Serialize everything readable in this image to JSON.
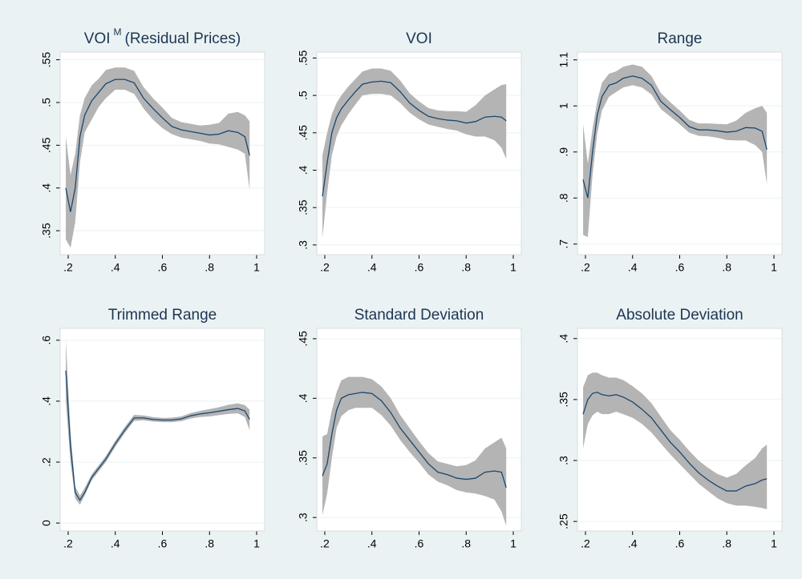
{
  "chart_data": [
    {
      "type": "line",
      "title": "VOI",
      "title_sup": "M",
      "title_suffix": "(Residual Prices)",
      "color": "#1a476f",
      "band_color": "#b4b4b4",
      "grid": true,
      "x": [
        0.19,
        0.21,
        0.23,
        0.25,
        0.27,
        0.3,
        0.33,
        0.36,
        0.4,
        0.44,
        0.48,
        0.52,
        0.56,
        0.6,
        0.64,
        0.68,
        0.72,
        0.76,
        0.8,
        0.84,
        0.88,
        0.92,
        0.95,
        0.97
      ],
      "values": [
        0.4,
        0.372,
        0.4,
        0.46,
        0.485,
        0.502,
        0.512,
        0.522,
        0.527,
        0.527,
        0.523,
        0.505,
        0.493,
        0.482,
        0.472,
        0.468,
        0.466,
        0.464,
        0.462,
        0.463,
        0.467,
        0.465,
        0.46,
        0.438
      ],
      "lower": [
        0.34,
        0.33,
        0.36,
        0.43,
        0.465,
        0.48,
        0.495,
        0.505,
        0.515,
        0.515,
        0.51,
        0.493,
        0.48,
        0.47,
        0.463,
        0.459,
        0.457,
        0.455,
        0.452,
        0.451,
        0.448,
        0.445,
        0.44,
        0.398
      ],
      "upper": [
        0.46,
        0.415,
        0.44,
        0.485,
        0.505,
        0.52,
        0.528,
        0.538,
        0.541,
        0.541,
        0.537,
        0.518,
        0.505,
        0.494,
        0.482,
        0.477,
        0.475,
        0.473,
        0.474,
        0.476,
        0.487,
        0.489,
        0.485,
        0.478
      ],
      "xlim": [
        0.166,
        1.034
      ],
      "xticks": [
        {
          "value": 0.2,
          "label": ".2"
        },
        {
          "value": 0.4,
          "label": ".4"
        },
        {
          "value": 0.6,
          "label": ".6"
        },
        {
          "value": 0.8,
          "label": ".8"
        },
        1
      ],
      "ylim": [
        0.322,
        0.559
      ],
      "yticks": [
        {
          "value": 0.35,
          "label": ".35"
        },
        {
          "value": 0.4,
          "label": ".4"
        },
        {
          "value": 0.45,
          "label": ".45"
        },
        {
          "value": 0.5,
          "label": ".5"
        },
        {
          "value": 0.55,
          "label": ".55"
        }
      ]
    },
    {
      "type": "line",
      "title": "VOI",
      "color": "#1a476f",
      "band_color": "#b4b4b4",
      "grid": true,
      "x": [
        0.19,
        0.21,
        0.23,
        0.25,
        0.27,
        0.3,
        0.33,
        0.36,
        0.4,
        0.44,
        0.48,
        0.52,
        0.56,
        0.6,
        0.64,
        0.68,
        0.72,
        0.76,
        0.8,
        0.84,
        0.88,
        0.92,
        0.95,
        0.97
      ],
      "values": [
        0.365,
        0.41,
        0.45,
        0.47,
        0.482,
        0.494,
        0.505,
        0.515,
        0.518,
        0.519,
        0.517,
        0.505,
        0.49,
        0.48,
        0.472,
        0.469,
        0.467,
        0.466,
        0.463,
        0.465,
        0.471,
        0.472,
        0.471,
        0.466
      ],
      "lower": [
        0.31,
        0.37,
        0.42,
        0.445,
        0.46,
        0.475,
        0.488,
        0.5,
        0.502,
        0.502,
        0.5,
        0.49,
        0.477,
        0.468,
        0.461,
        0.458,
        0.455,
        0.453,
        0.448,
        0.445,
        0.445,
        0.44,
        0.43,
        0.415
      ],
      "upper": [
        0.42,
        0.45,
        0.475,
        0.49,
        0.5,
        0.512,
        0.522,
        0.532,
        0.536,
        0.536,
        0.533,
        0.52,
        0.503,
        0.492,
        0.483,
        0.48,
        0.479,
        0.479,
        0.478,
        0.487,
        0.5,
        0.508,
        0.514,
        0.515
      ],
      "xlim": [
        0.166,
        1.034
      ],
      "xticks": [
        {
          "value": 0.2,
          "label": ".2"
        },
        {
          "value": 0.4,
          "label": ".4"
        },
        {
          "value": 0.6,
          "label": ".6"
        },
        {
          "value": 0.8,
          "label": ".8"
        },
        1
      ],
      "ylim": [
        0.287,
        0.558
      ],
      "yticks": [
        {
          "value": 0.3,
          "label": ".3"
        },
        {
          "value": 0.35,
          "label": ".35"
        },
        {
          "value": 0.4,
          "label": ".4"
        },
        {
          "value": 0.45,
          "label": ".45"
        },
        {
          "value": 0.5,
          "label": ".5"
        },
        {
          "value": 0.55,
          "label": ".55"
        }
      ]
    },
    {
      "type": "line",
      "title": "Range",
      "color": "#1a476f",
      "band_color": "#b4b4b4",
      "grid": true,
      "x": [
        0.19,
        0.21,
        0.23,
        0.25,
        0.27,
        0.3,
        0.33,
        0.36,
        0.4,
        0.44,
        0.48,
        0.52,
        0.56,
        0.6,
        0.64,
        0.68,
        0.72,
        0.76,
        0.8,
        0.84,
        0.88,
        0.92,
        0.95,
        0.97
      ],
      "values": [
        0.84,
        0.8,
        0.9,
        0.98,
        1.02,
        1.045,
        1.05,
        1.06,
        1.065,
        1.06,
        1.045,
        1.01,
        0.992,
        0.975,
        0.955,
        0.948,
        0.948,
        0.946,
        0.943,
        0.945,
        0.953,
        0.952,
        0.945,
        0.905
      ],
      "lower": [
        0.72,
        0.715,
        0.85,
        0.94,
        0.99,
        1.02,
        1.03,
        1.04,
        1.045,
        1.04,
        1.025,
        0.993,
        0.977,
        0.96,
        0.942,
        0.935,
        0.934,
        0.931,
        0.926,
        0.925,
        0.925,
        0.915,
        0.9,
        0.83
      ],
      "upper": [
        0.96,
        0.875,
        0.95,
        1.01,
        1.05,
        1.07,
        1.075,
        1.085,
        1.09,
        1.085,
        1.065,
        1.028,
        1.008,
        0.99,
        0.97,
        0.962,
        0.962,
        0.961,
        0.96,
        0.968,
        0.985,
        0.995,
        1.0,
        0.985
      ],
      "xlim": [
        0.166,
        1.034
      ],
      "xticks": [
        {
          "value": 0.2,
          "label": ".2"
        },
        {
          "value": 0.4,
          "label": ".4"
        },
        {
          "value": 0.6,
          "label": ".6"
        },
        {
          "value": 0.8,
          "label": ".8"
        },
        1
      ],
      "ylim": [
        0.677,
        1.117
      ],
      "yticks": [
        {
          "value": 0.7,
          "label": ".7"
        },
        {
          "value": 0.8,
          "label": ".8"
        },
        {
          "value": 0.9,
          "label": ".9"
        },
        1,
        1.1
      ]
    },
    {
      "type": "line",
      "title": "Trimmed Range",
      "color": "#1a476f",
      "band_color": "#b4b4b4",
      "grid": true,
      "x": [
        0.19,
        0.21,
        0.23,
        0.25,
        0.27,
        0.3,
        0.33,
        0.36,
        0.4,
        0.44,
        0.48,
        0.52,
        0.56,
        0.6,
        0.64,
        0.68,
        0.72,
        0.76,
        0.8,
        0.84,
        0.88,
        0.92,
        0.95,
        0.97
      ],
      "values": [
        0.5,
        0.25,
        0.1,
        0.075,
        0.1,
        0.15,
        0.18,
        0.21,
        0.26,
        0.305,
        0.345,
        0.345,
        0.34,
        0.338,
        0.338,
        0.342,
        0.352,
        0.358,
        0.362,
        0.367,
        0.372,
        0.376,
        0.368,
        0.34
      ],
      "lower": [
        0.4,
        0.2,
        0.08,
        0.06,
        0.09,
        0.14,
        0.17,
        0.2,
        0.25,
        0.295,
        0.335,
        0.337,
        0.333,
        0.331,
        0.331,
        0.334,
        0.343,
        0.348,
        0.35,
        0.354,
        0.358,
        0.36,
        0.348,
        0.305
      ],
      "upper": [
        0.6,
        0.3,
        0.12,
        0.09,
        0.115,
        0.16,
        0.19,
        0.22,
        0.27,
        0.315,
        0.355,
        0.353,
        0.348,
        0.345,
        0.346,
        0.35,
        0.361,
        0.368,
        0.374,
        0.38,
        0.388,
        0.393,
        0.387,
        0.372
      ],
      "xlim": [
        0.166,
        1.034
      ],
      "xticks": [
        {
          "value": 0.2,
          "label": ".2"
        },
        {
          "value": 0.4,
          "label": ".4"
        },
        {
          "value": 0.6,
          "label": ".6"
        },
        {
          "value": 0.8,
          "label": ".8"
        },
        1
      ],
      "ylim": [
        -0.026,
        0.639
      ],
      "yticks": [
        0,
        {
          "value": 0.2,
          "label": ".2"
        },
        {
          "value": 0.4,
          "label": ".4"
        },
        {
          "value": 0.6,
          "label": ".6"
        }
      ]
    },
    {
      "type": "line",
      "title": "Standard Deviation",
      "color": "#1a476f",
      "band_color": "#b4b4b4",
      "grid": true,
      "x": [
        0.19,
        0.21,
        0.23,
        0.25,
        0.27,
        0.3,
        0.33,
        0.36,
        0.4,
        0.44,
        0.48,
        0.52,
        0.56,
        0.6,
        0.64,
        0.68,
        0.72,
        0.76,
        0.8,
        0.84,
        0.88,
        0.92,
        0.95,
        0.97
      ],
      "values": [
        0.335,
        0.345,
        0.37,
        0.39,
        0.4,
        0.403,
        0.404,
        0.405,
        0.404,
        0.398,
        0.388,
        0.375,
        0.365,
        0.355,
        0.345,
        0.338,
        0.336,
        0.333,
        0.332,
        0.333,
        0.338,
        0.339,
        0.338,
        0.325
      ],
      "lower": [
        0.302,
        0.32,
        0.35,
        0.375,
        0.385,
        0.39,
        0.392,
        0.392,
        0.392,
        0.386,
        0.377,
        0.365,
        0.355,
        0.346,
        0.336,
        0.33,
        0.327,
        0.323,
        0.321,
        0.32,
        0.318,
        0.315,
        0.305,
        0.293
      ],
      "upper": [
        0.368,
        0.37,
        0.39,
        0.405,
        0.415,
        0.418,
        0.418,
        0.418,
        0.416,
        0.41,
        0.4,
        0.386,
        0.375,
        0.364,
        0.354,
        0.347,
        0.345,
        0.343,
        0.344,
        0.348,
        0.358,
        0.363,
        0.367,
        0.358
      ],
      "xlim": [
        0.166,
        1.034
      ],
      "xticks": [
        {
          "value": 0.2,
          "label": ".2"
        },
        {
          "value": 0.4,
          "label": ".4"
        },
        {
          "value": 0.6,
          "label": ".6"
        },
        {
          "value": 0.8,
          "label": ".8"
        },
        1
      ],
      "ylim": [
        0.2887,
        0.4587
      ],
      "yticks": [
        {
          "value": 0.3,
          "label": ".3"
        },
        {
          "value": 0.35,
          "label": ".35"
        },
        {
          "value": 0.4,
          "label": ".4"
        },
        {
          "value": 0.45,
          "label": ".45"
        }
      ]
    },
    {
      "type": "line",
      "title": "Absolute Deviation",
      "color": "#1a476f",
      "band_color": "#b4b4b4",
      "grid": true,
      "x": [
        0.19,
        0.21,
        0.23,
        0.25,
        0.27,
        0.3,
        0.33,
        0.36,
        0.4,
        0.44,
        0.48,
        0.52,
        0.56,
        0.6,
        0.64,
        0.68,
        0.72,
        0.76,
        0.8,
        0.84,
        0.88,
        0.92,
        0.95,
        0.97
      ],
      "values": [
        0.338,
        0.35,
        0.355,
        0.356,
        0.354,
        0.353,
        0.354,
        0.352,
        0.348,
        0.342,
        0.335,
        0.325,
        0.315,
        0.307,
        0.298,
        0.29,
        0.284,
        0.279,
        0.275,
        0.275,
        0.279,
        0.281,
        0.284,
        0.285
      ],
      "lower": [
        0.31,
        0.33,
        0.337,
        0.34,
        0.338,
        0.338,
        0.34,
        0.338,
        0.335,
        0.33,
        0.323,
        0.314,
        0.305,
        0.297,
        0.289,
        0.281,
        0.275,
        0.269,
        0.265,
        0.263,
        0.263,
        0.262,
        0.261,
        0.26
      ],
      "upper": [
        0.36,
        0.37,
        0.372,
        0.372,
        0.37,
        0.368,
        0.368,
        0.366,
        0.361,
        0.355,
        0.347,
        0.336,
        0.325,
        0.317,
        0.308,
        0.3,
        0.294,
        0.289,
        0.286,
        0.289,
        0.296,
        0.302,
        0.31,
        0.313
      ],
      "xlim": [
        0.166,
        1.034
      ],
      "xticks": [
        {
          "value": 0.2,
          "label": ".2"
        },
        {
          "value": 0.4,
          "label": ".4"
        },
        {
          "value": 0.6,
          "label": ".6"
        },
        {
          "value": 0.8,
          "label": ".8"
        },
        1
      ],
      "ylim": [
        0.2422,
        0.4084
      ],
      "yticks": [
        {
          "value": 0.25,
          "label": ".25"
        },
        {
          "value": 0.3,
          "label": ".3"
        },
        {
          "value": 0.35,
          "label": ".35"
        },
        {
          "value": 0.4,
          "label": ".4"
        }
      ]
    }
  ]
}
